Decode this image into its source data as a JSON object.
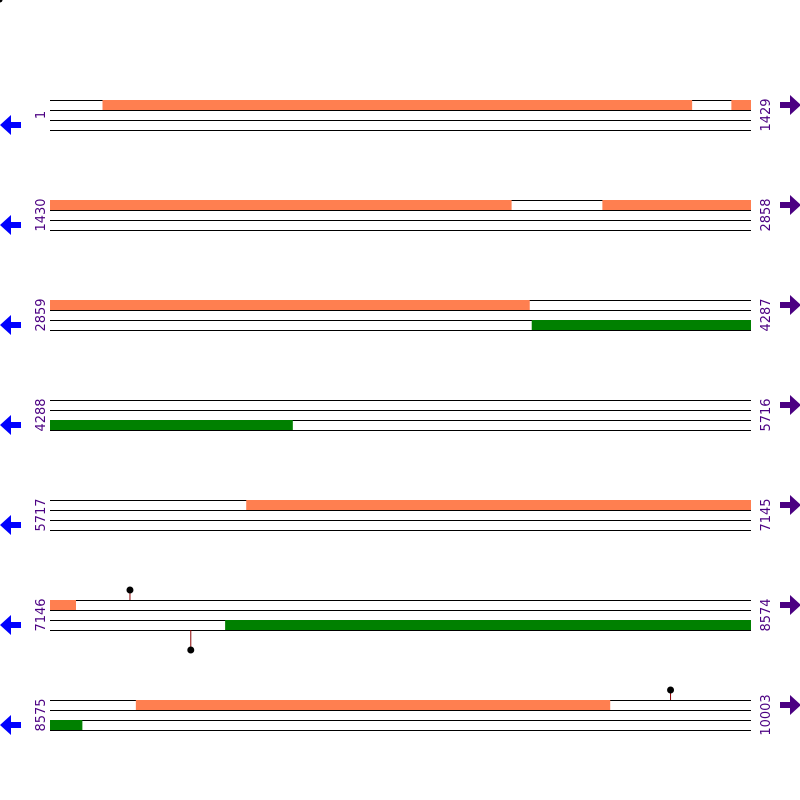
{
  "colors": {
    "forward_feature": "#ff7f50",
    "reverse_feature": "#008000",
    "track_line": "#000000",
    "left_arrow": "#0000ff",
    "right_arrow": "#4b0082",
    "position_label": "#4b0082",
    "marker_stem": "#8b0000",
    "marker_head": "#000000"
  },
  "icons": {
    "left": "left-arrow-icon",
    "right": "right-arrow-icon",
    "marker": "lollipop-marker-icon"
  },
  "chart_data": {
    "type": "sequence-map",
    "sequence_length": 10003,
    "rows": [
      {
        "start": 1,
        "end": 1429,
        "features": [
          {
            "strand": "forward",
            "from": 108,
            "to": 1309
          },
          {
            "strand": "forward",
            "from": 1390,
            "to": 1429
          }
        ],
        "markers": []
      },
      {
        "start": 1430,
        "end": 2858,
        "features": [
          {
            "strand": "forward",
            "from": 1430,
            "to": 2370
          },
          {
            "strand": "forward",
            "from": 2556,
            "to": 2858
          }
        ],
        "markers": []
      },
      {
        "start": 2859,
        "end": 4287,
        "features": [
          {
            "strand": "forward",
            "from": 2859,
            "to": 3836
          },
          {
            "strand": "reverse",
            "from": 3841,
            "to": 4287
          }
        ],
        "markers": []
      },
      {
        "start": 4288,
        "end": 5716,
        "features": [
          {
            "strand": "reverse",
            "from": 4288,
            "to": 4782
          }
        ],
        "markers": []
      },
      {
        "start": 5717,
        "end": 7145,
        "features": [
          {
            "strand": "forward",
            "from": 6117,
            "to": 7145
          }
        ],
        "markers": []
      },
      {
        "start": 7146,
        "end": 8574,
        "features": [
          {
            "strand": "forward",
            "from": 7146,
            "to": 7198
          },
          {
            "strand": "reverse",
            "from": 7503,
            "to": 8574
          }
        ],
        "markers": [
          {
            "strand": "forward",
            "position": 7309
          },
          {
            "strand": "reverse",
            "position": 7433
          }
        ]
      },
      {
        "start": 8575,
        "end": 10003,
        "features": [
          {
            "strand": "forward",
            "from": 8750,
            "to": 9716
          },
          {
            "strand": "reverse",
            "from": 8575,
            "to": 8640
          }
        ],
        "markers": [
          {
            "strand": "forward",
            "position": 9840
          }
        ]
      }
    ]
  }
}
